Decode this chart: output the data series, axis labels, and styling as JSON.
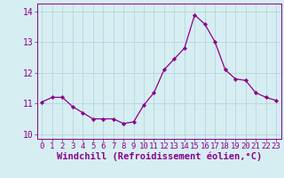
{
  "x": [
    0,
    1,
    2,
    3,
    4,
    5,
    6,
    7,
    8,
    9,
    10,
    11,
    12,
    13,
    14,
    15,
    16,
    17,
    18,
    19,
    20,
    21,
    22,
    23
  ],
  "y": [
    11.05,
    11.2,
    11.2,
    10.9,
    10.7,
    10.5,
    10.5,
    10.5,
    10.35,
    10.4,
    10.95,
    11.35,
    12.1,
    12.45,
    12.8,
    13.88,
    13.58,
    13.0,
    12.1,
    11.8,
    11.75,
    11.35,
    11.2,
    11.1
  ],
  "ylim": [
    9.85,
    14.25
  ],
  "yticks": [
    10,
    11,
    12,
    13,
    14
  ],
  "line_color": "#8B008B",
  "marker_color": "#8B008B",
  "bg_color": "#d6eef2",
  "grid_color": "#b0d0d8",
  "xlabel": "Windchill (Refroidissement éolien,°C)",
  "xlabel_fontsize": 7.5,
  "tick_fontsize": 6.5,
  "fig_bg": "#d6eef2"
}
